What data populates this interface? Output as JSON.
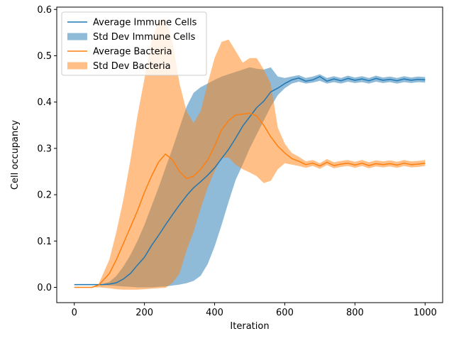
{
  "chart_data": {
    "type": "line",
    "title": "",
    "xlabel": "Iteration",
    "ylabel": "Cell occupancy",
    "xlim": [
      -50,
      1050
    ],
    "ylim": [
      -0.033,
      0.605
    ],
    "xticks": [
      0,
      200,
      400,
      600,
      800,
      1000
    ],
    "yticks": [
      0.0,
      0.1,
      0.2,
      0.3,
      0.4,
      0.5,
      0.6
    ],
    "xtick_labels": [
      "0",
      "200",
      "400",
      "600",
      "800",
      "1000"
    ],
    "ytick_labels": [
      "0.0",
      "0.1",
      "0.2",
      "0.3",
      "0.4",
      "0.5",
      "0.6"
    ],
    "grid": false,
    "legend_position": "top-left",
    "legend": [
      {
        "label": "Average Immune Cells",
        "kind": "line",
        "color": "#1f77b4"
      },
      {
        "label": "Std Dev Immune Cells",
        "kind": "band",
        "color": "#1f77b4"
      },
      {
        "label": "Average Bacteria",
        "kind": "line",
        "color": "#ff7f0e"
      },
      {
        "label": "Std Dev Bacteria",
        "kind": "band",
        "color": "#ff7f0e"
      }
    ],
    "series": [
      {
        "name": "Average Immune Cells",
        "color": "#1f77b4",
        "x": [
          0,
          50,
          80,
          100,
          120,
          140,
          160,
          180,
          200,
          220,
          240,
          260,
          280,
          300,
          320,
          340,
          360,
          380,
          400,
          420,
          440,
          460,
          480,
          500,
          520,
          540,
          560,
          580,
          600,
          620,
          640,
          660,
          680,
          700,
          720,
          740,
          760,
          780,
          800,
          820,
          840,
          860,
          880,
          900,
          920,
          940,
          960,
          980,
          1000
        ],
        "mean": [
          0.006,
          0.006,
          0.006,
          0.007,
          0.01,
          0.018,
          0.03,
          0.048,
          0.065,
          0.09,
          0.112,
          0.135,
          0.157,
          0.178,
          0.198,
          0.215,
          0.228,
          0.242,
          0.258,
          0.278,
          0.298,
          0.322,
          0.348,
          0.368,
          0.388,
          0.402,
          0.422,
          0.43,
          0.44,
          0.448,
          0.452,
          0.445,
          0.448,
          0.455,
          0.445,
          0.45,
          0.446,
          0.451,
          0.447,
          0.45,
          0.446,
          0.451,
          0.447,
          0.449,
          0.446,
          0.45,
          0.447,
          0.449,
          0.448
        ],
        "lower": [
          0.006,
          0.006,
          0.005,
          0.004,
          0.003,
          0.002,
          0.001,
          0.0,
          0.0,
          0.0,
          0.001,
          0.002,
          0.004,
          0.006,
          0.009,
          0.014,
          0.025,
          0.05,
          0.088,
          0.135,
          0.185,
          0.232,
          0.265,
          0.3,
          0.33,
          0.36,
          0.39,
          0.415,
          0.43,
          0.44,
          0.444,
          0.44,
          0.442,
          0.446,
          0.44,
          0.443,
          0.44,
          0.444,
          0.441,
          0.443,
          0.44,
          0.444,
          0.441,
          0.443,
          0.44,
          0.443,
          0.441,
          0.443,
          0.442
        ],
        "upper": [
          0.006,
          0.006,
          0.007,
          0.012,
          0.025,
          0.045,
          0.07,
          0.1,
          0.135,
          0.175,
          0.215,
          0.258,
          0.3,
          0.345,
          0.39,
          0.42,
          0.432,
          0.44,
          0.448,
          0.455,
          0.46,
          0.465,
          0.47,
          0.475,
          0.472,
          0.47,
          0.475,
          0.455,
          0.452,
          0.455,
          0.458,
          0.452,
          0.455,
          0.46,
          0.452,
          0.456,
          0.452,
          0.457,
          0.453,
          0.456,
          0.452,
          0.457,
          0.453,
          0.455,
          0.452,
          0.456,
          0.453,
          0.455,
          0.454
        ]
      },
      {
        "name": "Average Bacteria",
        "color": "#ff7f0e",
        "x": [
          0,
          50,
          70,
          100,
          120,
          140,
          160,
          180,
          200,
          220,
          240,
          260,
          280,
          300,
          320,
          340,
          360,
          380,
          400,
          420,
          440,
          460,
          480,
          500,
          520,
          540,
          560,
          580,
          600,
          620,
          640,
          660,
          680,
          700,
          720,
          740,
          760,
          780,
          800,
          820,
          840,
          860,
          880,
          900,
          920,
          940,
          960,
          980,
          1000
        ],
        "mean": [
          0.0,
          0.0,
          0.005,
          0.03,
          0.06,
          0.095,
          0.13,
          0.165,
          0.205,
          0.24,
          0.27,
          0.288,
          0.275,
          0.25,
          0.235,
          0.24,
          0.255,
          0.275,
          0.305,
          0.34,
          0.36,
          0.372,
          0.374,
          0.376,
          0.37,
          0.35,
          0.325,
          0.305,
          0.29,
          0.278,
          0.272,
          0.265,
          0.268,
          0.262,
          0.27,
          0.263,
          0.266,
          0.268,
          0.264,
          0.268,
          0.263,
          0.267,
          0.265,
          0.267,
          0.264,
          0.268,
          0.265,
          0.266,
          0.268
        ],
        "lower": [
          0.0,
          0.0,
          0.0,
          -0.002,
          -0.004,
          -0.005,
          -0.005,
          -0.005,
          -0.004,
          -0.003,
          -0.002,
          -0.001,
          0.01,
          0.03,
          0.08,
          0.12,
          0.17,
          0.215,
          0.25,
          0.28,
          0.28,
          0.265,
          0.255,
          0.248,
          0.24,
          0.225,
          0.23,
          0.255,
          0.268,
          0.265,
          0.262,
          0.258,
          0.262,
          0.256,
          0.264,
          0.257,
          0.26,
          0.262,
          0.258,
          0.262,
          0.257,
          0.261,
          0.259,
          0.261,
          0.258,
          0.262,
          0.259,
          0.26,
          0.262
        ],
        "upper": [
          0.0,
          0.0,
          0.008,
          0.06,
          0.12,
          0.19,
          0.275,
          0.37,
          0.45,
          0.53,
          0.575,
          0.58,
          0.53,
          0.44,
          0.38,
          0.355,
          0.38,
          0.44,
          0.495,
          0.53,
          0.535,
          0.51,
          0.485,
          0.495,
          0.495,
          0.47,
          0.44,
          0.345,
          0.31,
          0.29,
          0.282,
          0.272,
          0.275,
          0.268,
          0.277,
          0.27,
          0.273,
          0.275,
          0.271,
          0.275,
          0.27,
          0.274,
          0.272,
          0.274,
          0.271,
          0.275,
          0.272,
          0.273,
          0.275
        ]
      }
    ]
  }
}
